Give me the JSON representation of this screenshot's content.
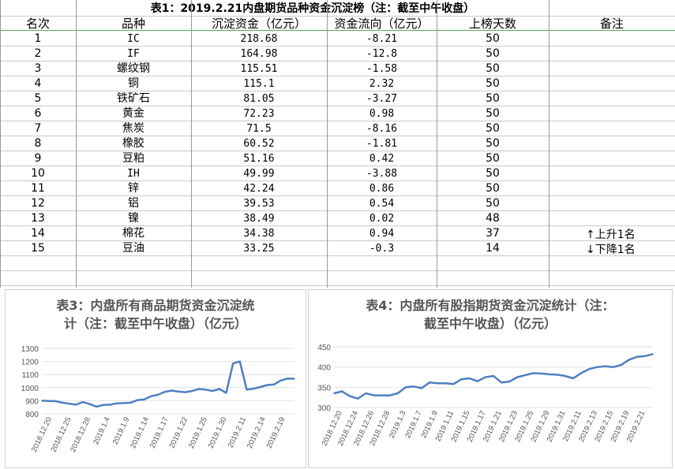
{
  "table": {
    "title": "表1：2019.2.21内盘期货品种资金沉淀榜（注：截至中午收盘）",
    "headers": [
      "名次",
      "品种",
      "沉淀资金（亿元）",
      "资金流向（亿元）",
      "上榜天数",
      "备注"
    ],
    "rows": [
      {
        "rank": "1",
        "name": "IC",
        "fund": "218.68",
        "flow": "-8.21",
        "days": "50",
        "note": ""
      },
      {
        "rank": "2",
        "name": "IF",
        "fund": "164.98",
        "flow": "-12.8",
        "days": "50",
        "note": ""
      },
      {
        "rank": "3",
        "name": "螺纹钢",
        "fund": "115.51",
        "flow": "-1.58",
        "days": "50",
        "note": ""
      },
      {
        "rank": "4",
        "name": "铜",
        "fund": "115.1",
        "flow": "2.32",
        "days": "50",
        "note": ""
      },
      {
        "rank": "5",
        "name": "铁矿石",
        "fund": "81.05",
        "flow": "-3.27",
        "days": "50",
        "note": ""
      },
      {
        "rank": "6",
        "name": "黄金",
        "fund": "72.23",
        "flow": "0.98",
        "days": "50",
        "note": ""
      },
      {
        "rank": "7",
        "name": "焦炭",
        "fund": "71.5",
        "flow": "-8.16",
        "days": "50",
        "note": ""
      },
      {
        "rank": "8",
        "name": "橡胶",
        "fund": "60.52",
        "flow": "-1.81",
        "days": "50",
        "note": ""
      },
      {
        "rank": "9",
        "name": "豆粕",
        "fund": "51.16",
        "flow": "0.42",
        "days": "50",
        "note": ""
      },
      {
        "rank": "10",
        "name": "IH",
        "fund": "49.99",
        "flow": "-3.88",
        "days": "50",
        "note": ""
      },
      {
        "rank": "11",
        "name": "锌",
        "fund": "42.24",
        "flow": "0.86",
        "days": "50",
        "note": ""
      },
      {
        "rank": "12",
        "name": "铝",
        "fund": "39.53",
        "flow": "0.54",
        "days": "50",
        "note": ""
      },
      {
        "rank": "13",
        "name": "镍",
        "fund": "38.49",
        "flow": "0.02",
        "days": "48",
        "note": ""
      },
      {
        "rank": "14",
        "name": "棉花",
        "fund": "34.38",
        "flow": "0.94",
        "days": "37",
        "note": "上升1名",
        "arrow": "↑"
      },
      {
        "rank": "15",
        "name": "豆油",
        "fund": "33.25",
        "flow": "-0.3",
        "days": "14",
        "note": "下降1名",
        "arrow": "↓"
      }
    ]
  },
  "chart_data": [
    {
      "type": "line",
      "title": "表3：内盘所有商品期货资金沉淀统计（注：截至中午收盘）（亿元）",
      "title_lines": [
        "表3：内盘所有商品期货资金沉淀统",
        "计（注：截至中午收盘）（亿元）"
      ],
      "x_tick_labels": [
        "2018.12.20",
        "2018.12.25",
        "2018.12.28",
        "2019.1.4",
        "2019.1.9",
        "2019.1.14",
        "2019.1.17",
        "2019.1.22",
        "2019.1.25",
        "2019.1.30",
        "2019.2.11",
        "2019.2.14",
        "2019.2.19"
      ],
      "y_ticks": [
        800,
        900,
        1000,
        1100,
        1200,
        1300
      ],
      "ylim": [
        800,
        1300
      ],
      "grid": true,
      "color": "#4f7fc0",
      "values": [
        900,
        898,
        897,
        885,
        878,
        870,
        890,
        875,
        855,
        868,
        870,
        880,
        882,
        885,
        905,
        910,
        935,
        945,
        968,
        978,
        970,
        965,
        975,
        990,
        985,
        975,
        990,
        960,
        1185,
        1200,
        985,
        992,
        1005,
        1020,
        1025,
        1055,
        1070,
        1068
      ]
    },
    {
      "type": "line",
      "title": "表4：内盘所有股指期货资金沉淀统计（注：截至中午收盘）（亿元）",
      "title_lines": [
        "表4：内盘所有股指期货资金沉淀统计（注：",
        "截至中午收盘）（亿元）"
      ],
      "x_tick_labels": [
        "2018.12.20",
        "2018.12.24",
        "2018.12.26",
        "2018.12.28",
        "2019.1.3",
        "2019.1.7",
        "2019.1.9",
        "2019.1.11",
        "2019.1.15",
        "2019.1.17",
        "2019.1.21",
        "2019.1.23",
        "2019.1.25",
        "2019.1.29",
        "2019.1.31",
        "2019.2.11",
        "2019.2.13",
        "2019.2.15",
        "2019.2.19",
        "2019.2.21"
      ],
      "y_ticks": [
        300,
        350,
        400,
        450
      ],
      "ylim": [
        300,
        450
      ],
      "grid": true,
      "color": "#4f7fc0",
      "values": [
        335,
        340,
        328,
        322,
        335,
        330,
        330,
        330,
        335,
        350,
        352,
        348,
        362,
        360,
        360,
        358,
        370,
        372,
        365,
        375,
        378,
        362,
        364,
        375,
        380,
        385,
        384,
        382,
        381,
        378,
        372,
        385,
        395,
        400,
        402,
        400,
        405,
        418,
        425,
        427,
        432
      ]
    }
  ]
}
